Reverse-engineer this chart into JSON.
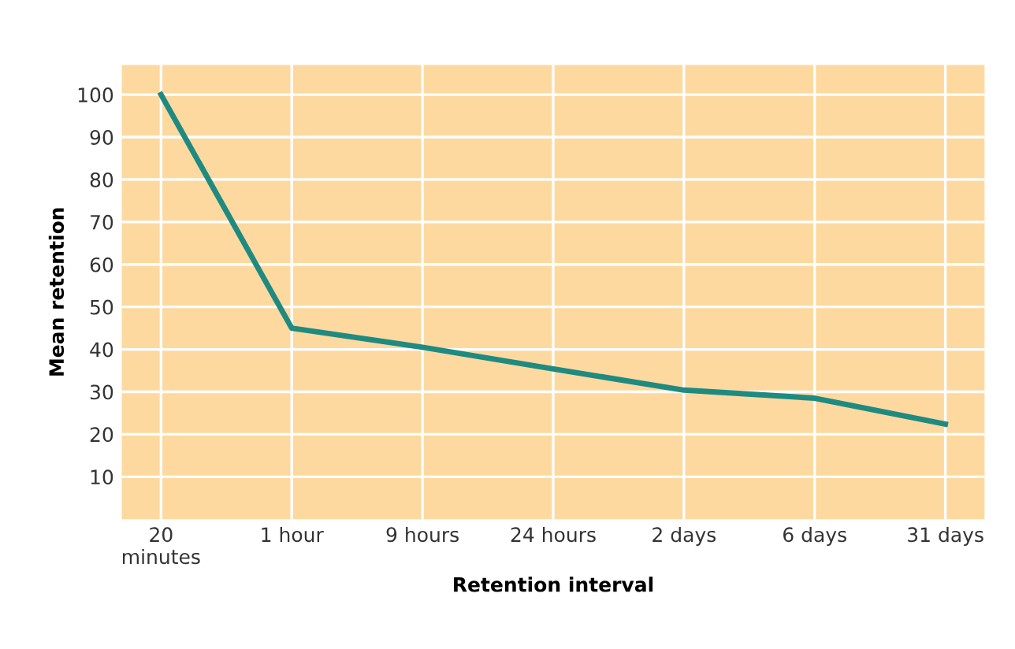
{
  "chart_data": {
    "type": "line",
    "xlabel": "Retention interval",
    "ylabel": "Mean retention",
    "categories": [
      "20\nminutes",
      "1 hour",
      "9 hours",
      "24 hours",
      "2 days",
      "6 days",
      "31 days"
    ],
    "series": [
      {
        "color": "#1f8a80",
        "values": [
          100,
          45,
          40.5,
          35.4,
          30.4,
          28.5,
          22.4
        ]
      }
    ],
    "ylim": [
      0,
      107
    ],
    "yticks": [
      10,
      20,
      30,
      40,
      50,
      60,
      70,
      80,
      90,
      100
    ],
    "grid": true,
    "marker": "none",
    "line_style": "solid"
  }
}
